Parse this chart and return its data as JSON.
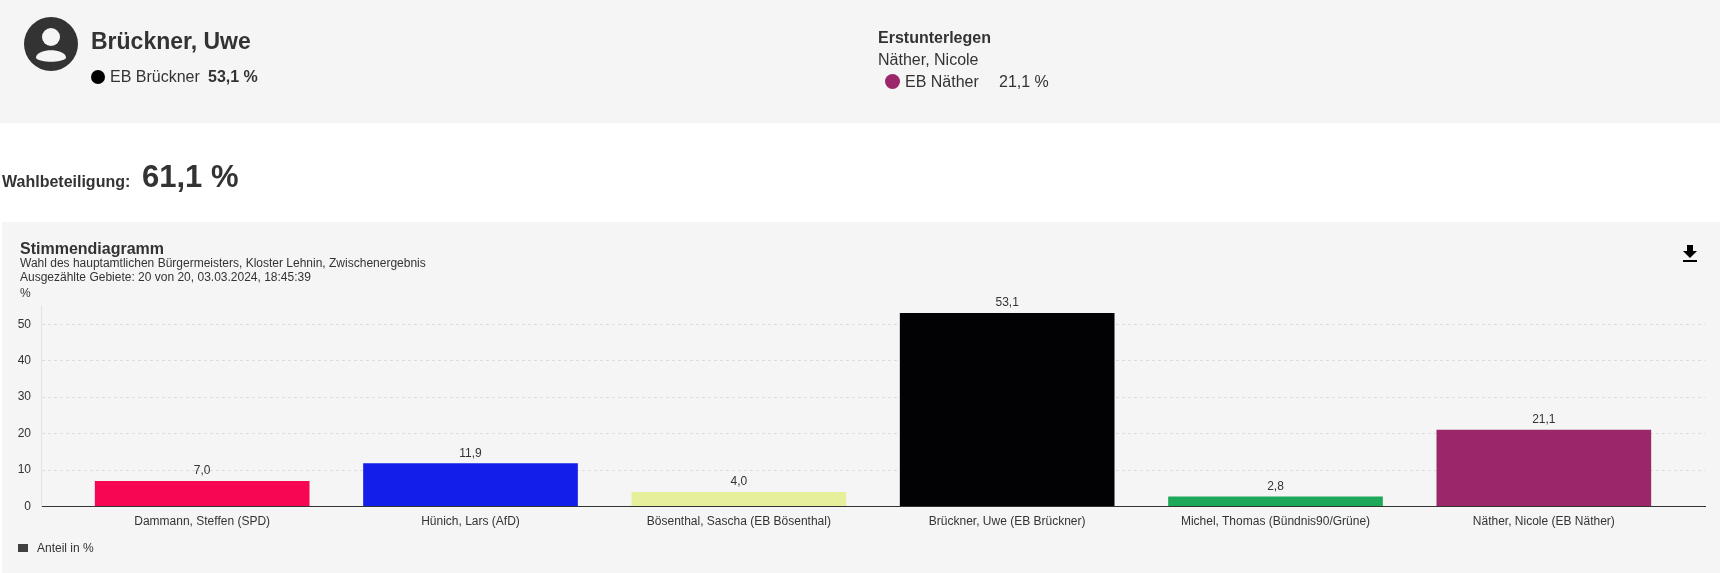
{
  "chart_data": {
    "type": "bar",
    "title": "Stimmendiagramm",
    "subtitle": "Wahl des hauptamtlichen Bürgermeisters, Kloster Lehnin, Zwischenergebnis",
    "ylabel": "%",
    "categories": [
      "Dammann, Steffen (SPD)",
      "Hünich, Lars (AfD)",
      "Bösenthal, Sascha (EB Bösenthal)",
      "Brückner, Uwe (EB Brückner)",
      "Michel, Thomas (Bündnis90/Grüne)",
      "Näther, Nicole (EB Näther)"
    ],
    "series": [
      {
        "name": "Anteil in %",
        "color": "#404040",
        "colors": [
          "#f70653",
          "#121ee9",
          "#e6f09a",
          "#020104",
          "#1ea85a",
          "#9c266a"
        ],
        "values": [
          7.0,
          11.9,
          4.0,
          53.1,
          2.8,
          21.1
        ],
        "value_labels": [
          "7,0",
          "11,9",
          "4,0",
          "53,1",
          "2,8",
          "21,1"
        ]
      }
    ],
    "ylim": [
      0,
      55
    ],
    "yticks": [
      0,
      10,
      20,
      30,
      40,
      50
    ],
    "grid": "y",
    "legend": "bottom left",
    "annotations": [
      "Brückner, Uwe",
      "EB Brückner",
      "53,1 %",
      "Erstunterlegen",
      "Näther, Nicole",
      "EB Näther",
      "21,1 %",
      "Wahlbeteiligung:",
      "61,1 %",
      "Ausgezählte Gebiete: 20 von 20, 03.03.2024, 18:45:39"
    ]
  }
}
